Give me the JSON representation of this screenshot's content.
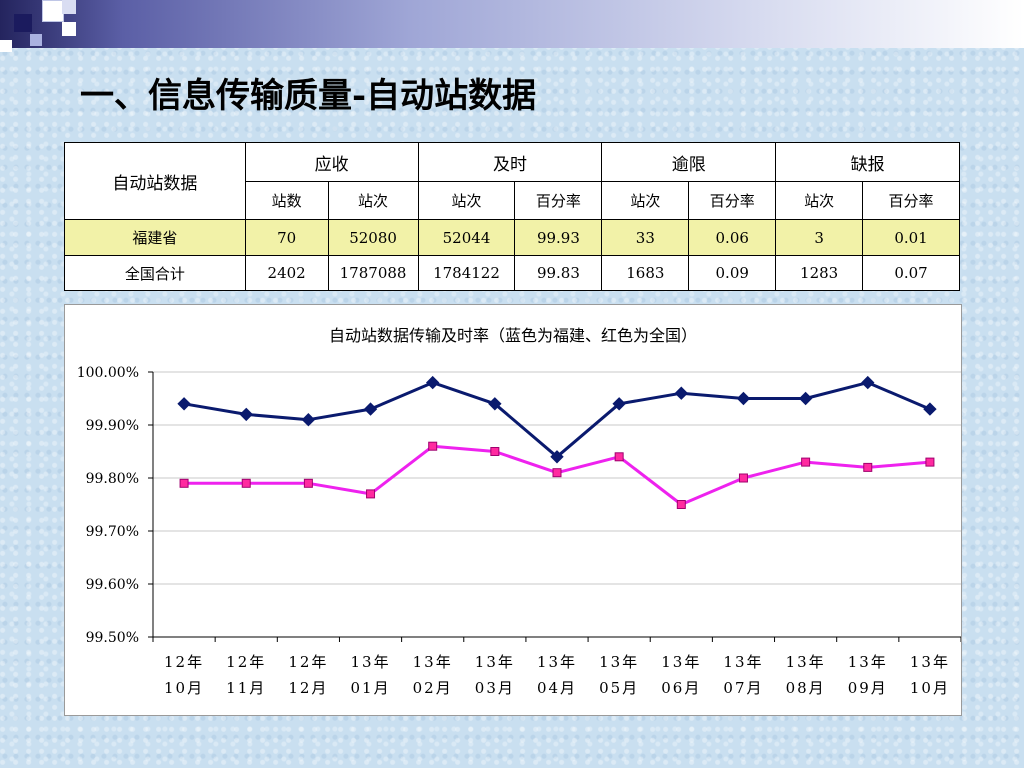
{
  "slide": {
    "title": "一、信息传输质量-自动站数据"
  },
  "table": {
    "corner": "自动站数据",
    "groups": [
      "应收",
      "及时",
      "逾限",
      "缺报"
    ],
    "subheaders": [
      "站数",
      "站次",
      "站次",
      "百分率",
      "站次",
      "百分率",
      "站次",
      "百分率"
    ],
    "rows": [
      {
        "label": "福建省",
        "cells": [
          "70",
          "52080",
          "52044",
          "99.93",
          "33",
          "0.06",
          "3",
          "0.01"
        ]
      },
      {
        "label": "全国合计",
        "cells": [
          "2402",
          "1787088",
          "1784122",
          "99.83",
          "1683",
          "0.09",
          "1283",
          "0.07"
        ]
      }
    ]
  },
  "colors": {
    "fujian_series": "#0a1a6e",
    "national_series": "#ee22ee",
    "national_marker": "#ff2aa0",
    "highlight_row": "#f2f2a8"
  },
  "chart_data": {
    "type": "line",
    "title": "自动站数据传输及时率（蓝色为福建、红色为全国）",
    "x_top": [
      "12年",
      "12年",
      "12年",
      "13年",
      "13年",
      "13年",
      "13年",
      "13年",
      "13年",
      "13年",
      "13年",
      "13年",
      "13年"
    ],
    "x_bottom": [
      "10月",
      "11月",
      "12月",
      "01月",
      "02月",
      "03月",
      "04月",
      "05月",
      "06月",
      "07月",
      "08月",
      "09月",
      "10月"
    ],
    "y_ticks": [
      "100.00%",
      "99.90%",
      "99.80%",
      "99.70%",
      "99.60%",
      "99.50%"
    ],
    "ylim": [
      99.5,
      100.0
    ],
    "grid": true,
    "series": [
      {
        "values": [
          99.94,
          99.92,
          99.91,
          99.93,
          99.98,
          99.94,
          99.84,
          99.94,
          99.96,
          99.95,
          99.95,
          99.98,
          99.93
        ]
      },
      {
        "values": [
          99.79,
          99.79,
          99.79,
          99.77,
          99.86,
          99.85,
          99.81,
          99.84,
          99.75,
          99.8,
          99.83,
          99.82,
          99.83
        ]
      }
    ]
  }
}
